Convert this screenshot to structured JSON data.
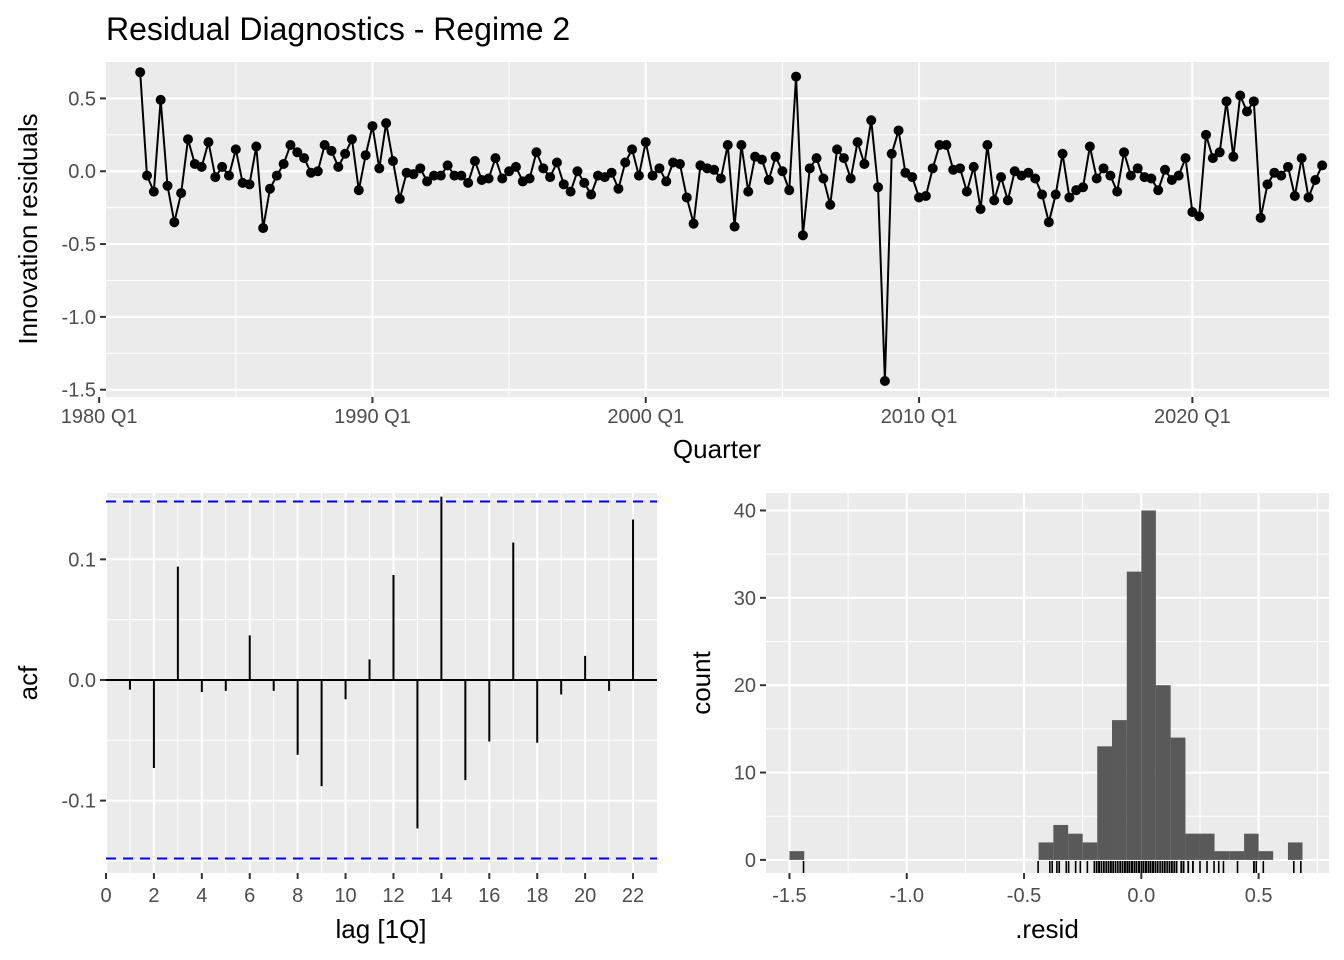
{
  "title": "Residual Diagnostics - Regime 2",
  "colors": {
    "panel": "#EBEBEB",
    "grid": "#FFFFFF",
    "line": "#000000",
    "ci": "#0000FF",
    "bar": "#595959"
  },
  "chart_data": [
    {
      "type": "line",
      "xlabel": "Quarter",
      "ylabel": "Innovation residuals",
      "xlim": [
        1980.25,
        2025.0
      ],
      "ylim": [
        -1.55,
        0.75
      ],
      "x_ticks": [
        {
          "value": 1980.0,
          "label": "1980 Q1"
        },
        {
          "value": 1990.0,
          "label": "1990 Q1"
        },
        {
          "value": 2000.0,
          "label": "2000 Q1"
        },
        {
          "value": 2010.0,
          "label": "2010 Q1"
        },
        {
          "value": 2020.0,
          "label": "2020 Q1"
        }
      ],
      "y_ticks": [
        {
          "value": 0.5,
          "label": "0.5"
        },
        {
          "value": 0.0,
          "label": "0.0"
        },
        {
          "value": -0.5,
          "label": "-0.5"
        },
        {
          "value": -1.0,
          "label": "-1.0"
        },
        {
          "value": -1.5,
          "label": "-1.5"
        }
      ],
      "start": 1981.5,
      "step": 0.25,
      "values": [
        0.68,
        -0.03,
        -0.14,
        0.49,
        -0.1,
        -0.35,
        -0.15,
        0.22,
        0.05,
        0.03,
        0.2,
        -0.04,
        0.03,
        -0.03,
        0.15,
        -0.08,
        -0.09,
        0.17,
        -0.39,
        -0.12,
        -0.03,
        0.05,
        0.18,
        0.13,
        0.09,
        -0.01,
        0.0,
        0.18,
        0.14,
        0.03,
        0.12,
        0.22,
        -0.13,
        0.11,
        0.31,
        0.02,
        0.33,
        0.07,
        -0.19,
        -0.01,
        -0.02,
        0.02,
        -0.07,
        -0.03,
        -0.03,
        0.04,
        -0.03,
        -0.03,
        -0.08,
        0.07,
        -0.06,
        -0.05,
        0.09,
        -0.05,
        0.0,
        0.03,
        -0.07,
        -0.05,
        0.13,
        0.02,
        -0.04,
        0.06,
        -0.09,
        -0.14,
        0.0,
        -0.08,
        -0.16,
        -0.03,
        -0.04,
        -0.01,
        -0.12,
        0.06,
        0.15,
        -0.03,
        0.2,
        -0.03,
        0.02,
        -0.07,
        0.06,
        0.05,
        -0.18,
        -0.36,
        0.04,
        0.02,
        0.01,
        -0.05,
        0.18,
        -0.38,
        0.18,
        -0.14,
        0.1,
        0.08,
        -0.06,
        0.1,
        0.0,
        -0.13,
        0.65,
        -0.44,
        0.02,
        0.09,
        -0.05,
        -0.23,
        0.15,
        0.09,
        -0.05,
        0.2,
        0.05,
        0.35,
        -0.11,
        -1.44,
        0.12,
        0.28,
        -0.01,
        -0.04,
        -0.18,
        -0.17,
        0.02,
        0.18,
        0.18,
        0.01,
        0.02,
        -0.14,
        0.03,
        -0.26,
        0.18,
        -0.2,
        -0.04,
        -0.2,
        0.0,
        -0.03,
        -0.01,
        -0.05,
        -0.16,
        -0.35,
        -0.16,
        0.12,
        -0.18,
        -0.13,
        -0.11,
        0.17,
        -0.05,
        0.02,
        -0.03,
        -0.14,
        0.13,
        -0.03,
        0.02,
        -0.04,
        -0.05,
        -0.13,
        0.01,
        -0.06,
        -0.03,
        0.09,
        -0.28,
        -0.31,
        0.25,
        0.09,
        0.13,
        0.48,
        0.1,
        0.52,
        0.41,
        0.48,
        -0.32,
        -0.09,
        -0.01,
        -0.03,
        0.03,
        -0.17,
        0.09,
        -0.18,
        -0.06,
        0.04
      ]
    },
    {
      "type": "bar",
      "subtype": "acf",
      "xlabel": "lag [1Q]",
      "ylabel": "acf",
      "xlim": [
        0,
        23
      ],
      "ylim": [
        -0.16,
        0.155
      ],
      "x_ticks": [
        "0",
        "2",
        "4",
        "6",
        "8",
        "10",
        "12",
        "14",
        "16",
        "18",
        "20",
        "22"
      ],
      "y_ticks": [
        {
          "value": 0.1,
          "label": "0.1"
        },
        {
          "value": 0.0,
          "label": "0.0"
        },
        {
          "value": -0.1,
          "label": "-0.1"
        }
      ],
      "ci": 0.148,
      "lags": [
        1,
        2,
        3,
        4,
        5,
        6,
        7,
        8,
        9,
        10,
        11,
        12,
        13,
        14,
        15,
        16,
        17,
        18,
        19,
        20,
        21,
        22
      ],
      "values": [
        -0.008,
        -0.073,
        0.094,
        -0.01,
        -0.009,
        0.037,
        -0.009,
        -0.062,
        -0.088,
        -0.016,
        0.017,
        0.087,
        -0.123,
        0.152,
        -0.083,
        -0.051,
        0.114,
        -0.052,
        -0.012,
        0.02,
        -0.009,
        0.133
      ]
    },
    {
      "type": "bar",
      "subtype": "histogram",
      "xlabel": ".resid",
      "ylabel": "count",
      "xlim": [
        -1.6,
        0.8
      ],
      "ylim": [
        -1.5,
        42
      ],
      "x_ticks": [
        {
          "value": -1.5,
          "label": "-1.5"
        },
        {
          "value": -1.0,
          "label": "-1.0"
        },
        {
          "value": -0.5,
          "label": "-0.5"
        },
        {
          "value": 0.0,
          "label": "0.0"
        },
        {
          "value": 0.5,
          "label": "0.5"
        }
      ],
      "y_ticks": [
        {
          "value": 40,
          "label": "40"
        },
        {
          "value": 30,
          "label": "30"
        },
        {
          "value": 20,
          "label": "20"
        },
        {
          "value": 10,
          "label": "10"
        },
        {
          "value": 0,
          "label": "0"
        }
      ],
      "bins": [
        {
          "x0": -1.5,
          "x1": -1.437,
          "count": 1
        },
        {
          "x0": -0.438,
          "x1": -0.375,
          "count": 2
        },
        {
          "x0": -0.375,
          "x1": -0.312,
          "count": 4
        },
        {
          "x0": -0.312,
          "x1": -0.25,
          "count": 3
        },
        {
          "x0": -0.25,
          "x1": -0.188,
          "count": 2
        },
        {
          "x0": -0.188,
          "x1": -0.125,
          "count": 13
        },
        {
          "x0": -0.125,
          "x1": -0.062,
          "count": 16
        },
        {
          "x0": -0.062,
          "x1": 0.0,
          "count": 33
        },
        {
          "x0": 0.0,
          "x1": 0.062,
          "count": 40
        },
        {
          "x0": 0.062,
          "x1": 0.125,
          "count": 20
        },
        {
          "x0": 0.125,
          "x1": 0.188,
          "count": 14
        },
        {
          "x0": 0.188,
          "x1": 0.25,
          "count": 3
        },
        {
          "x0": 0.25,
          "x1": 0.312,
          "count": 3
        },
        {
          "x0": 0.312,
          "x1": 0.375,
          "count": 1
        },
        {
          "x0": 0.375,
          "x1": 0.438,
          "count": 1
        },
        {
          "x0": 0.438,
          "x1": 0.5,
          "count": 3
        },
        {
          "x0": 0.5,
          "x1": 0.562,
          "count": 1
        },
        {
          "x0": 0.625,
          "x1": 0.687,
          "count": 2
        }
      ]
    }
  ]
}
